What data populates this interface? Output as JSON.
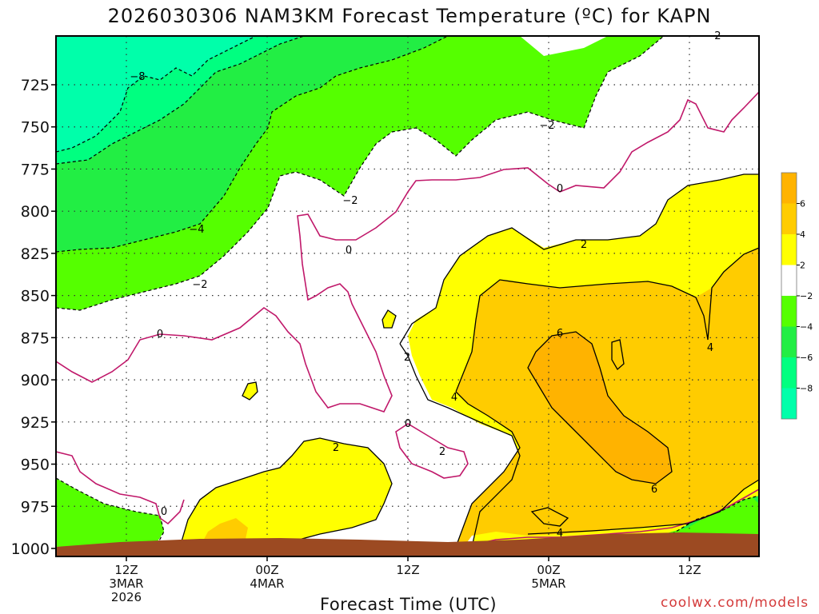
{
  "chart_data": {
    "type": "heatmap",
    "title": "2026030306 NAM3KM Forecast Temperature (ºC) for KAPN",
    "xlabel": "Forecast Time (UTC)",
    "watermark": "coolwx.com/models",
    "yaxis": {
      "quantity": "pressure (hPa)",
      "ticks": [
        725,
        750,
        775,
        800,
        825,
        850,
        875,
        900,
        925,
        950,
        975,
        1000
      ],
      "range": [
        705,
        1003
      ],
      "reversed": true
    },
    "xaxis": {
      "ticks": [
        {
          "lines": [
            "12Z",
            "3MAR",
            "2026"
          ]
        },
        {
          "lines": [
            "00Z",
            "4MAR"
          ]
        },
        {
          "lines": [
            "12Z"
          ]
        },
        {
          "lines": [
            "00Z",
            "5MAR"
          ]
        },
        {
          "lines": [
            "12Z"
          ]
        }
      ]
    },
    "grid": true,
    "colorbar": {
      "placement": "right",
      "bins": [
        {
          "from": 6,
          "to": 8,
          "color": "#ffb300"
        },
        {
          "from": 4,
          "to": 6,
          "color": "#ffcc00"
        },
        {
          "from": 2,
          "to": 4,
          "color": "#ffff00"
        },
        {
          "from": -2,
          "to": 2,
          "color": "#ffffff"
        },
        {
          "from": -4,
          "to": -2,
          "color": "#55ff00"
        },
        {
          "from": -6,
          "to": -4,
          "color": "#22ee44"
        },
        {
          "from": -8,
          "to": -6,
          "color": "#00ff80"
        },
        {
          "from": -10,
          "to": -8,
          "color": "#00ffaa"
        }
      ],
      "labels": [
        "6",
        "4",
        "2",
        "-2",
        "-4",
        "-6",
        "-8"
      ]
    },
    "contour_labels": [
      "-8",
      "-2",
      "-4",
      "-2",
      "0",
      "-2",
      "0",
      "2",
      "4",
      "2",
      "6",
      "0",
      "0",
      "0",
      "2",
      "4",
      "2",
      "4",
      "6",
      "-2",
      "-2"
    ],
    "ground_color": "#9c4a22"
  }
}
